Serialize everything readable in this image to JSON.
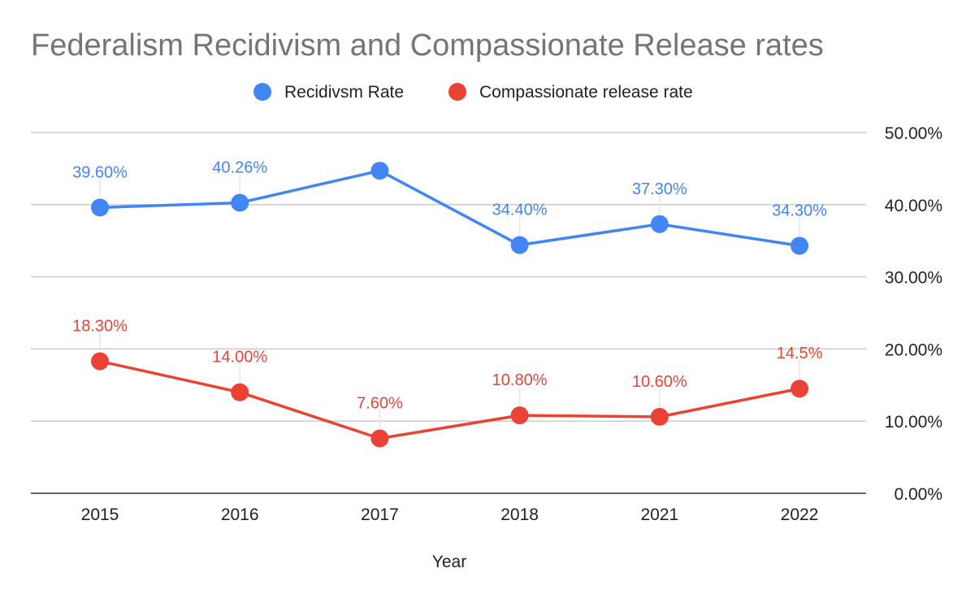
{
  "chart_data": {
    "type": "line",
    "title": "Federalism Recidivism and Compassionate Release rates",
    "xlabel": "Year",
    "ylabel": "",
    "categories": [
      "2015",
      "2016",
      "2017",
      "2018",
      "2021",
      "2022"
    ],
    "ylim": [
      0,
      50
    ],
    "y_ticks": [
      "0.00%",
      "10.00%",
      "20.00%",
      "30.00%",
      "40.00%",
      "50.00%"
    ],
    "y_axis_side": "right",
    "grid": true,
    "legend_position": "top",
    "series": [
      {
        "name": "Recidivsm Rate",
        "color": "#4285f4",
        "values": [
          39.6,
          40.26,
          44.7,
          34.4,
          37.3,
          34.3
        ],
        "labels": [
          "39.60%",
          "40.26%",
          "",
          "34.40%",
          "37.30%",
          "34.30%"
        ]
      },
      {
        "name": "Compassionate release rate",
        "color": "#ea4335",
        "values": [
          18.3,
          14.0,
          7.6,
          10.8,
          10.6,
          14.5
        ],
        "labels": [
          "18.30%",
          "14.00%",
          "7.60%",
          "10.80%",
          "10.60%",
          "14.5%"
        ]
      }
    ]
  }
}
